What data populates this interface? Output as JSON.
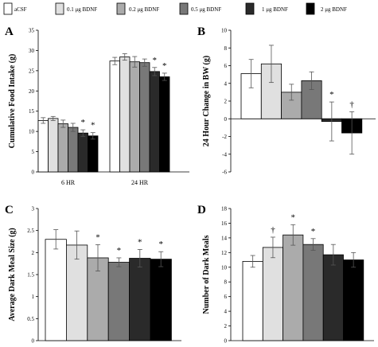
{
  "legend": {
    "entries": [
      {
        "label": "aCSF",
        "color": "#ffffff"
      },
      {
        "label": "0.1 μg BDNF",
        "color": "#e0e0e0"
      },
      {
        "label": "0.2 μg BDNF",
        "color": "#ababab"
      },
      {
        "label": "0.5 μg BDNF",
        "color": "#787878"
      },
      {
        "label": "1 μg BDNF",
        "color": "#2a2a2a"
      },
      {
        "label": "2 μg BDNF",
        "color": "#000000"
      }
    ]
  },
  "chart_data": [
    {
      "panel": "A",
      "type": "bar",
      "title": "",
      "xlabel": "",
      "ylabel": "Cumulative Food Intake (g)",
      "ylim": [
        0,
        35
      ],
      "yticks": [
        0,
        5,
        10,
        15,
        20,
        25,
        30,
        35
      ],
      "categories": [
        "6 HR",
        "24 HR"
      ],
      "series": [
        {
          "name": "aCSF",
          "values": [
            12.7,
            27.4
          ],
          "errors": [
            0.7,
            0.9
          ]
        },
        {
          "name": "0.1 μg BDNF",
          "values": [
            13.2,
            28.4
          ],
          "errors": [
            0.5,
            0.8
          ]
        },
        {
          "name": "0.2 μg BDNF",
          "values": [
            11.9,
            27.2
          ],
          "errors": [
            0.9,
            1.3
          ]
        },
        {
          "name": "0.5 μg BDNF",
          "values": [
            11.0,
            27.0
          ],
          "errors": [
            1.0,
            0.9
          ]
        },
        {
          "name": "1 μg BDNF",
          "values": [
            9.6,
            24.8
          ],
          "errors": [
            0.8,
            1.0
          ]
        },
        {
          "name": "2 μg BDNF",
          "values": [
            8.9,
            23.5
          ],
          "errors": [
            0.8,
            0.9
          ]
        }
      ],
      "annotations": [
        {
          "category": "6 HR",
          "series_index": 4,
          "text": "*"
        },
        {
          "category": "6 HR",
          "series_index": 5,
          "text": "*"
        },
        {
          "category": "24 HR",
          "series_index": 4,
          "text": "*"
        },
        {
          "category": "24 HR",
          "series_index": 5,
          "text": "*"
        }
      ]
    },
    {
      "panel": "B",
      "type": "bar",
      "title": "",
      "xlabel": "",
      "ylabel": "24 Hour Change in BW (g)",
      "ylim": [
        -6,
        10
      ],
      "yticks": [
        -6,
        -4,
        -2,
        0,
        2,
        4,
        6,
        8,
        10
      ],
      "categories": [
        ""
      ],
      "series": [
        {
          "name": "aCSF",
          "values": [
            5.1
          ],
          "errors": [
            1.6
          ]
        },
        {
          "name": "0.1 μg BDNF",
          "values": [
            6.2
          ],
          "errors": [
            2.1
          ]
        },
        {
          "name": "0.2 μg BDNF",
          "values": [
            3.0
          ],
          "errors": [
            0.9
          ]
        },
        {
          "name": "0.5 μg BDNF",
          "values": [
            4.3
          ],
          "errors": [
            1.0
          ]
        },
        {
          "name": "1 μg BDNF",
          "values": [
            -0.3
          ],
          "errors": [
            2.2
          ]
        },
        {
          "name": "2 μg BDNF",
          "values": [
            -1.6
          ],
          "errors": [
            2.4
          ]
        }
      ],
      "annotations": [
        {
          "category": "",
          "series_index": 4,
          "text": "*"
        },
        {
          "category": "",
          "series_index": 5,
          "text": "†"
        }
      ]
    },
    {
      "panel": "C",
      "type": "bar",
      "title": "",
      "xlabel": "",
      "ylabel": "Average Dark Meal Size (g)",
      "ylim": [
        0,
        3
      ],
      "yticks": [
        0,
        0.5,
        1,
        1.5,
        2,
        2.5,
        3
      ],
      "categories": [
        ""
      ],
      "series": [
        {
          "name": "aCSF",
          "values": [
            2.3
          ],
          "errors": [
            0.22
          ]
        },
        {
          "name": "0.1 μg BDNF",
          "values": [
            2.17
          ],
          "errors": [
            0.32
          ]
        },
        {
          "name": "0.2 μg BDNF",
          "values": [
            1.88
          ],
          "errors": [
            0.3
          ]
        },
        {
          "name": "0.5 μg BDNF",
          "values": [
            1.78
          ],
          "errors": [
            0.1
          ]
        },
        {
          "name": "1 μg BDNF",
          "values": [
            1.87
          ],
          "errors": [
            0.2
          ]
        },
        {
          "name": "2 μg BDNF",
          "values": [
            1.85
          ],
          "errors": [
            0.17
          ]
        }
      ],
      "annotations": [
        {
          "category": "",
          "series_index": 2,
          "text": "*"
        },
        {
          "category": "",
          "series_index": 3,
          "text": "*"
        },
        {
          "category": "",
          "series_index": 4,
          "text": "*"
        },
        {
          "category": "",
          "series_index": 5,
          "text": "*"
        }
      ]
    },
    {
      "panel": "D",
      "type": "bar",
      "title": "",
      "xlabel": "",
      "ylabel": "Number of Dark Meals",
      "ylim": [
        0,
        18
      ],
      "yticks": [
        0,
        2,
        4,
        6,
        8,
        10,
        12,
        14,
        16,
        18
      ],
      "categories": [
        ""
      ],
      "series": [
        {
          "name": "aCSF",
          "values": [
            10.8
          ],
          "errors": [
            0.8
          ]
        },
        {
          "name": "0.1 μg BDNF",
          "values": [
            12.7
          ],
          "errors": [
            1.4
          ]
        },
        {
          "name": "0.2 μg BDNF",
          "values": [
            14.4
          ],
          "errors": [
            1.4
          ]
        },
        {
          "name": "0.5 μg BDNF",
          "values": [
            13.1
          ],
          "errors": [
            0.8
          ]
        },
        {
          "name": "1 μg BDNF",
          "values": [
            11.7
          ],
          "errors": [
            1.4
          ]
        },
        {
          "name": "2 μg BDNF",
          "values": [
            11.0
          ],
          "errors": [
            1.0
          ]
        }
      ],
      "annotations": [
        {
          "category": "",
          "series_index": 1,
          "text": "†"
        },
        {
          "category": "",
          "series_index": 2,
          "text": "*"
        },
        {
          "category": "",
          "series_index": 3,
          "text": "*"
        }
      ]
    }
  ]
}
